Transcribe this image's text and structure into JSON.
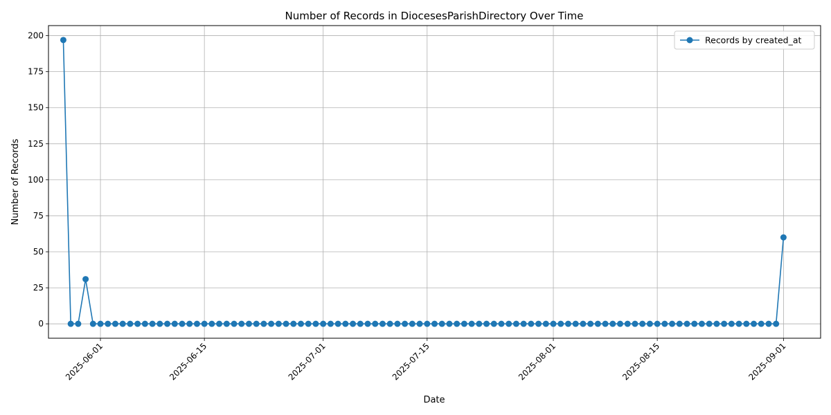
{
  "chart_data": {
    "type": "line",
    "title": "Number of Records in DiocesesParishDirectory Over Time",
    "xlabel": "Date",
    "ylabel": "Number of Records",
    "x_start": "2025-05-27",
    "x_end": "2025-09-01",
    "xlim": [
      "2025-05-25",
      "2025-09-06"
    ],
    "ylim": [
      -10,
      207
    ],
    "yticks": [
      0,
      25,
      50,
      75,
      100,
      125,
      150,
      175,
      200
    ],
    "xticks": [
      "2025-06-01",
      "2025-06-15",
      "2025-07-01",
      "2025-07-15",
      "2025-08-01",
      "2025-08-15",
      "2025-09-01"
    ],
    "grid": true,
    "legend_position": "top-right",
    "series": [
      {
        "name": "Records by created_at",
        "color": "#1f77b4",
        "marker": "circle",
        "nonzero_values": {
          "2025-05-27": 197,
          "2025-05-30": 31,
          "2025-09-01": 60
        },
        "default_value": 0
      }
    ]
  }
}
